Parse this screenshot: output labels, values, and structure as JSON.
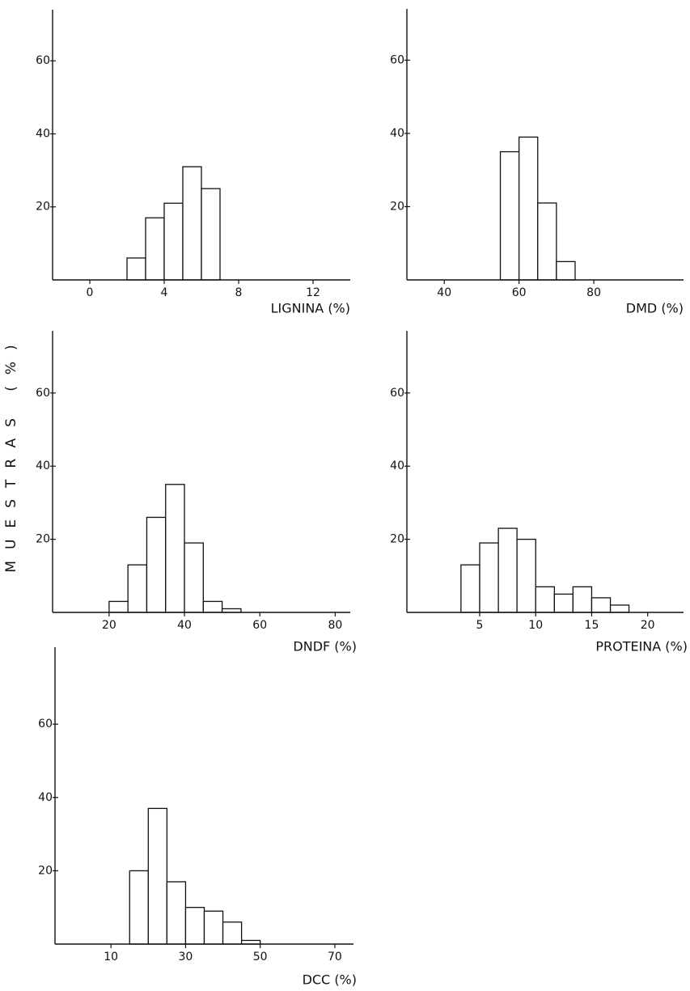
{
  "y_axis_label": "MUESTRAS (%)",
  "chart_data": [
    {
      "type": "histogram",
      "xlabel": "LIGNINA (%)",
      "bins": [
        2,
        3,
        4,
        5,
        6,
        7
      ],
      "values": [
        6,
        17,
        21,
        31,
        25
      ],
      "xlim": [
        -2,
        14
      ],
      "xticks": [
        0,
        4,
        8,
        12
      ],
      "ylim": [
        0,
        74
      ],
      "yticks": [
        20,
        40,
        60
      ]
    },
    {
      "type": "histogram",
      "xlabel": "DMD (%)",
      "bins": [
        55,
        60,
        65,
        70,
        75
      ],
      "values": [
        35,
        39,
        21,
        5
      ],
      "xlim": [
        30,
        104
      ],
      "xticks": [
        40,
        60,
        80
      ],
      "ylim": [
        0,
        74
      ],
      "yticks": [
        20,
        40,
        60
      ]
    },
    {
      "type": "histogram",
      "xlabel": "DNDF (%)",
      "bins": [
        20,
        25,
        30,
        35,
        40,
        45,
        50,
        55
      ],
      "values": [
        3,
        13,
        26,
        35,
        19,
        3,
        1
      ],
      "xlim": [
        5,
        84
      ],
      "xticks": [
        20,
        40,
        60,
        80
      ],
      "ylim": [
        0,
        77
      ],
      "yticks": [
        20,
        40,
        60
      ]
    },
    {
      "type": "histogram",
      "xlabel": "PROTEINA (%)",
      "bins": [
        3.33,
        5,
        6.67,
        8.33,
        10,
        11.67,
        13.33,
        15,
        16.67,
        18.33
      ],
      "values": [
        13,
        19,
        23,
        20,
        7,
        5,
        7,
        4,
        2
      ],
      "xlim": [
        -1.5,
        23.2
      ],
      "xticks": [
        5,
        10,
        15,
        20
      ],
      "ylim": [
        0,
        77
      ],
      "yticks": [
        20,
        40,
        60
      ]
    },
    {
      "type": "histogram",
      "xlabel": "DCC (%)",
      "bins": [
        15,
        20,
        25,
        30,
        35,
        40,
        45,
        50
      ],
      "values": [
        20,
        37,
        17,
        10,
        9,
        6,
        1
      ],
      "xlim": [
        -5,
        75
      ],
      "xticks": [
        10,
        30,
        50,
        70
      ],
      "ylim": [
        0,
        81
      ],
      "yticks": [
        20,
        40,
        60
      ]
    }
  ]
}
